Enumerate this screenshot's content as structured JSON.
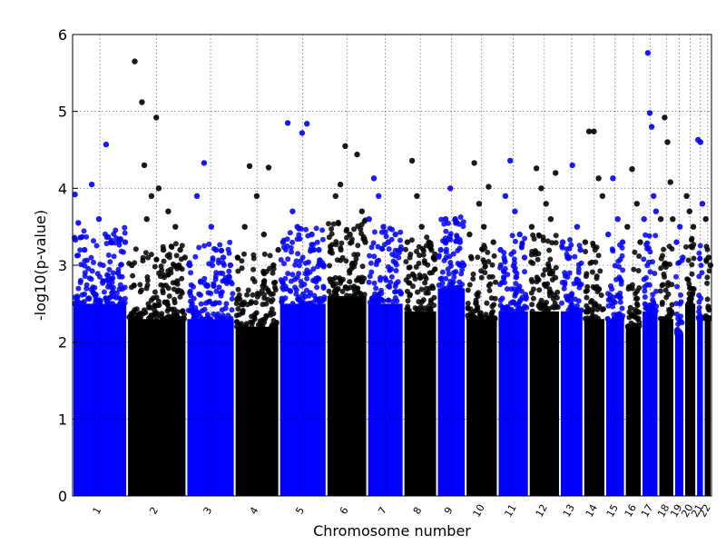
{
  "chart_data": {
    "type": "scatter",
    "title": "",
    "xlabel": "Chromosome number",
    "ylabel": "-log10(p-value)",
    "ylim": [
      0,
      6
    ],
    "yticks": [
      "0",
      "1",
      "2",
      "3",
      "4",
      "5",
      "6"
    ],
    "grid": true,
    "colors": {
      "odd": "#0000ff",
      "even": "#000000"
    },
    "chromosomes": [
      {
        "name": "1",
        "span": [
          0.0,
          0.114
        ],
        "dense_top": 2.5,
        "points": [
          [
            0.005,
            3.92
          ],
          [
            0.012,
            3.55
          ],
          [
            0.025,
            3.2
          ],
          [
            0.04,
            4.05
          ],
          [
            0.055,
            3.6
          ],
          [
            0.07,
            4.57
          ],
          [
            0.08,
            3.3
          ],
          [
            0.095,
            2.9
          ],
          [
            0.11,
            3.3
          ]
        ]
      },
      {
        "name": "2",
        "span": [
          0.114,
          0.238
        ],
        "dense_top": 2.3,
        "points": [
          [
            0.124,
            3.0
          ],
          [
            0.13,
            5.65
          ],
          [
            0.145,
            5.12
          ],
          [
            0.15,
            4.3
          ],
          [
            0.155,
            3.6
          ],
          [
            0.165,
            3.9
          ],
          [
            0.175,
            4.92
          ],
          [
            0.18,
            4.0
          ],
          [
            0.19,
            3.2
          ],
          [
            0.2,
            3.7
          ],
          [
            0.215,
            3.5
          ],
          [
            0.225,
            3.2
          ],
          [
            0.235,
            3.1
          ]
        ]
      },
      {
        "name": "3",
        "span": [
          0.238,
          0.339
        ],
        "dense_top": 2.3,
        "points": [
          [
            0.245,
            3.0
          ],
          [
            0.26,
            3.9
          ],
          [
            0.275,
            4.33
          ],
          [
            0.29,
            3.5
          ],
          [
            0.3,
            3.2
          ],
          [
            0.315,
            3.1
          ],
          [
            0.33,
            3.0
          ]
        ]
      },
      {
        "name": "4",
        "span": [
          0.339,
          0.432
        ],
        "dense_top": 2.2,
        "points": [
          [
            0.345,
            3.1
          ],
          [
            0.36,
            3.5
          ],
          [
            0.37,
            4.29
          ],
          [
            0.385,
            3.9
          ],
          [
            0.4,
            3.4
          ],
          [
            0.41,
            4.27
          ],
          [
            0.42,
            3.0
          ],
          [
            0.43,
            3.2
          ]
        ]
      },
      {
        "name": "5",
        "span": [
          0.432,
          0.531
        ],
        "dense_top": 2.5,
        "points": [
          [
            0.44,
            3.3
          ],
          [
            0.45,
            4.85
          ],
          [
            0.46,
            3.7
          ],
          [
            0.47,
            3.5
          ],
          [
            0.48,
            4.72
          ],
          [
            0.49,
            4.84
          ],
          [
            0.5,
            3.4
          ],
          [
            0.515,
            3.2
          ],
          [
            0.525,
            3.0
          ]
        ]
      },
      {
        "name": "6",
        "span": [
          0.531,
          0.616
        ],
        "dense_top": 2.6,
        "points": [
          [
            0.54,
            3.2
          ],
          [
            0.55,
            3.9
          ],
          [
            0.56,
            4.05
          ],
          [
            0.57,
            4.55
          ],
          [
            0.58,
            3.4
          ],
          [
            0.595,
            4.44
          ],
          [
            0.605,
            3.7
          ],
          [
            0.612,
            3.3
          ]
        ]
      },
      {
        "name": "7",
        "span": [
          0.616,
          0.692
        ],
        "dense_top": 2.5,
        "points": [
          [
            0.62,
            3.6
          ],
          [
            0.63,
            4.13
          ],
          [
            0.64,
            3.9
          ],
          [
            0.65,
            3.5
          ],
          [
            0.66,
            3.3
          ],
          [
            0.675,
            3.4
          ],
          [
            0.685,
            3.2
          ]
        ]
      },
      {
        "name": "8",
        "span": [
          0.692,
          0.762
        ],
        "dense_top": 2.4,
        "points": [
          [
            0.7,
            3.3
          ],
          [
            0.71,
            4.36
          ],
          [
            0.72,
            3.9
          ],
          [
            0.73,
            3.5
          ],
          [
            0.745,
            3.3
          ],
          [
            0.755,
            3.1
          ]
        ]
      },
      {
        "name": "9",
        "span": [
          0.762,
          0.822
        ],
        "dense_top": 2.7,
        "points": [
          [
            0.77,
            3.2
          ],
          [
            0.78,
            3.6
          ],
          [
            0.79,
            4.0
          ],
          [
            0.8,
            3.6
          ],
          [
            0.81,
            3.3
          ],
          [
            0.818,
            3.0
          ]
        ]
      },
      {
        "name": "10",
        "span": [
          0.822,
          0.889
        ],
        "dense_top": 2.3,
        "points": [
          [
            0.83,
            3.4
          ],
          [
            0.84,
            4.33
          ],
          [
            0.85,
            3.8
          ],
          [
            0.86,
            3.5
          ],
          [
            0.87,
            4.02
          ],
          [
            0.88,
            3.3
          ]
        ]
      },
      {
        "name": "11",
        "span": [
          0.889,
          0.954
        ],
        "dense_top": 2.4,
        "points": [
          [
            0.895,
            3.2
          ],
          [
            0.905,
            3.9
          ],
          [
            0.915,
            4.36
          ],
          [
            0.925,
            3.7
          ],
          [
            0.935,
            3.4
          ],
          [
            0.945,
            3.1
          ]
        ]
      },
      {
        "name": "12",
        "span": [
          0.954,
          1.019
        ],
        "dense_top": 2.4,
        "points": [
          [
            0.96,
            3.5
          ],
          [
            0.97,
            4.26
          ],
          [
            0.98,
            4.0
          ],
          [
            0.99,
            3.8
          ],
          [
            1.0,
            3.6
          ],
          [
            1.01,
            4.2
          ]
        ]
      },
      {
        "name": "13",
        "span": [
          1.019,
          1.068
        ],
        "dense_top": 2.4,
        "points": [
          [
            1.025,
            3.3
          ],
          [
            1.035,
            3.1
          ],
          [
            1.045,
            4.3
          ],
          [
            1.055,
            3.5
          ],
          [
            1.062,
            3.2
          ]
        ]
      },
      {
        "name": "14",
        "span": [
          1.068,
          1.114
        ],
        "dense_top": 2.3,
        "points": [
          [
            1.072,
            3.3
          ],
          [
            1.08,
            4.74
          ],
          [
            1.09,
            4.74
          ],
          [
            1.1,
            4.13
          ],
          [
            1.108,
            3.9
          ]
        ]
      },
      {
        "name": "15",
        "span": [
          1.114,
          1.155
        ],
        "dense_top": 2.3,
        "points": [
          [
            1.12,
            3.4
          ],
          [
            1.13,
            4.13
          ],
          [
            1.14,
            3.6
          ],
          [
            1.15,
            3.3
          ]
        ]
      },
      {
        "name": "16",
        "span": [
          1.155,
          1.19
        ],
        "dense_top": 2.2,
        "points": [
          [
            1.16,
            3.5
          ],
          [
            1.17,
            4.25
          ],
          [
            1.18,
            3.8
          ],
          [
            1.187,
            3.3
          ]
        ]
      },
      {
        "name": "17",
        "span": [
          1.19,
          1.225
        ],
        "dense_top": 2.4,
        "points": [
          [
            1.195,
            3.6
          ],
          [
            1.203,
            5.76
          ],
          [
            1.207,
            4.98
          ],
          [
            1.211,
            4.8
          ],
          [
            1.215,
            3.9
          ],
          [
            1.22,
            3.7
          ]
        ]
      },
      {
        "name": "18",
        "span": [
          1.225,
          1.258
        ],
        "dense_top": 2.3,
        "points": [
          [
            1.23,
            3.6
          ],
          [
            1.238,
            4.92
          ],
          [
            1.244,
            4.6
          ],
          [
            1.25,
            4.08
          ],
          [
            1.255,
            3.6
          ]
        ]
      },
      {
        "name": "19",
        "span": [
          1.258,
          1.279
        ],
        "dense_top": 2.1,
        "points": [
          [
            1.263,
            3.3
          ],
          [
            1.27,
            3.5
          ],
          [
            1.276,
            3.1
          ]
        ]
      },
      {
        "name": "20",
        "span": [
          1.279,
          1.304
        ],
        "dense_top": 2.5,
        "points": [
          [
            1.284,
            3.9
          ],
          [
            1.29,
            3.7
          ],
          [
            1.298,
            3.5
          ]
        ]
      },
      {
        "name": "21",
        "span": [
          1.304,
          1.32
        ],
        "dense_top": 2.3,
        "points": [
          [
            1.308,
            4.63
          ],
          [
            1.313,
            4.6
          ],
          [
            1.317,
            3.8
          ]
        ]
      },
      {
        "name": "22",
        "span": [
          1.32,
          1.336
        ],
        "dense_top": 2.3,
        "points": [
          [
            1.324,
            3.6
          ],
          [
            1.33,
            3.1
          ],
          [
            1.334,
            3.0
          ]
        ]
      }
    ]
  }
}
